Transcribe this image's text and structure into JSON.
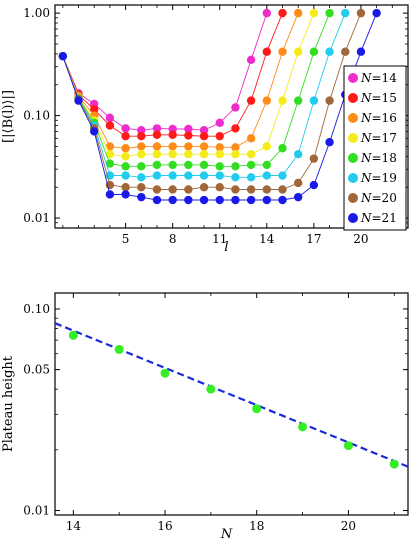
{
  "chart_data": [
    {
      "type": "line",
      "ylabel": "[|⟨B(l)⟩|]",
      "xlabel": "l",
      "yscale": "log",
      "ylim": [
        0.008,
        1.2
      ],
      "xlim": [
        0.5,
        23
      ],
      "xticks": [
        5,
        8,
        11,
        14,
        17,
        20
      ],
      "xtick_labels": [
        "5",
        "8",
        "11",
        "14",
        "17",
        "20"
      ],
      "yticks": [
        0.01,
        0.1,
        1
      ],
      "ytick_labels": [
        "0.01",
        "0.10",
        "1.00"
      ],
      "legend_position": "right",
      "series": [
        {
          "name": "N=14",
          "color": "#ee2bcb",
          "x": [
            1,
            2,
            3,
            4,
            5,
            6,
            7,
            8,
            9,
            10,
            11,
            12,
            13,
            14
          ],
          "y": [
            0.38,
            0.165,
            0.13,
            0.095,
            0.075,
            0.072,
            0.075,
            0.074,
            0.074,
            0.072,
            0.085,
            0.12,
            0.35,
            1.0
          ]
        },
        {
          "name": "N=15",
          "color": "#ff1a1a",
          "x": [
            1,
            2,
            3,
            4,
            5,
            6,
            7,
            8,
            9,
            10,
            11,
            12,
            13,
            14,
            15
          ],
          "y": [
            0.38,
            0.16,
            0.115,
            0.08,
            0.063,
            0.063,
            0.065,
            0.065,
            0.064,
            0.063,
            0.063,
            0.075,
            0.14,
            0.42,
            1.0
          ]
        },
        {
          "name": "N=16",
          "color": "#ff8c1a",
          "x": [
            1,
            2,
            3,
            4,
            5,
            6,
            7,
            8,
            9,
            10,
            11,
            12,
            13,
            14,
            15,
            16
          ],
          "y": [
            0.38,
            0.155,
            0.1,
            0.05,
            0.048,
            0.05,
            0.05,
            0.05,
            0.05,
            0.05,
            0.049,
            0.049,
            0.06,
            0.14,
            0.42,
            1.0
          ]
        },
        {
          "name": "N=17",
          "color": "#f5ea1c",
          "x": [
            1,
            2,
            3,
            4,
            5,
            6,
            7,
            8,
            9,
            10,
            11,
            12,
            13,
            14,
            15,
            16,
            17
          ],
          "y": [
            0.38,
            0.15,
            0.09,
            0.042,
            0.04,
            0.042,
            0.042,
            0.042,
            0.042,
            0.042,
            0.042,
            0.042,
            0.042,
            0.05,
            0.14,
            0.42,
            1.0
          ]
        },
        {
          "name": "N=18",
          "color": "#33dd22",
          "x": [
            1,
            2,
            3,
            4,
            5,
            6,
            7,
            8,
            9,
            10,
            11,
            12,
            13,
            14,
            15,
            16,
            17,
            18
          ],
          "y": [
            0.38,
            0.148,
            0.085,
            0.034,
            0.032,
            0.032,
            0.033,
            0.033,
            0.033,
            0.033,
            0.032,
            0.032,
            0.033,
            0.033,
            0.048,
            0.14,
            0.42,
            1.0
          ]
        },
        {
          "name": "N=19",
          "color": "#22ccee",
          "x": [
            1,
            2,
            3,
            4,
            5,
            6,
            7,
            8,
            9,
            10,
            11,
            12,
            13,
            14,
            15,
            16,
            17,
            18,
            19
          ],
          "y": [
            0.38,
            0.145,
            0.08,
            0.026,
            0.026,
            0.025,
            0.026,
            0.026,
            0.026,
            0.026,
            0.026,
            0.025,
            0.025,
            0.026,
            0.026,
            0.042,
            0.14,
            0.42,
            1.0
          ]
        },
        {
          "name": "N=20",
          "color": "#a0673a",
          "x": [
            1,
            2,
            3,
            4,
            5,
            6,
            7,
            8,
            9,
            10,
            11,
            12,
            13,
            14,
            15,
            16,
            17,
            18,
            19,
            20
          ],
          "y": [
            0.38,
            0.145,
            0.075,
            0.021,
            0.02,
            0.02,
            0.019,
            0.019,
            0.019,
            0.02,
            0.02,
            0.019,
            0.019,
            0.019,
            0.019,
            0.022,
            0.038,
            0.14,
            0.42,
            1.0
          ]
        },
        {
          "name": "N=21",
          "color": "#1a1ae8",
          "x": [
            1,
            2,
            3,
            4,
            5,
            6,
            7,
            8,
            9,
            10,
            11,
            12,
            13,
            14,
            15,
            16,
            17,
            18,
            19,
            20,
            21
          ],
          "y": [
            0.38,
            0.14,
            0.07,
            0.017,
            0.017,
            0.016,
            0.015,
            0.015,
            0.015,
            0.015,
            0.015,
            0.015,
            0.015,
            0.015,
            0.015,
            0.016,
            0.021,
            0.055,
            0.16,
            0.42,
            1.0
          ]
        }
      ]
    },
    {
      "type": "scatter",
      "ylabel": "Plateau height",
      "xlabel": "N",
      "yscale": "log",
      "xlim": [
        13.6,
        21.3
      ],
      "ylim": [
        0.0095,
        0.12
      ],
      "xticks": [
        14,
        16,
        18,
        20
      ],
      "xtick_labels": [
        "14",
        "16",
        "18",
        "20"
      ],
      "yticks": [
        0.01,
        0.05,
        0.1
      ],
      "ytick_labels": [
        "0.01",
        "0.05",
        "0.10"
      ],
      "points": {
        "color": "#33ee22",
        "x": [
          14,
          15,
          16,
          17,
          18,
          19,
          20,
          21
        ],
        "y": [
          0.074,
          0.063,
          0.048,
          0.04,
          0.032,
          0.026,
          0.021,
          0.017
        ]
      },
      "fit_line": {
        "color": "#1a2adb",
        "x": [
          13.6,
          21.3
        ],
        "y": [
          0.085,
          0.0165
        ]
      }
    }
  ]
}
